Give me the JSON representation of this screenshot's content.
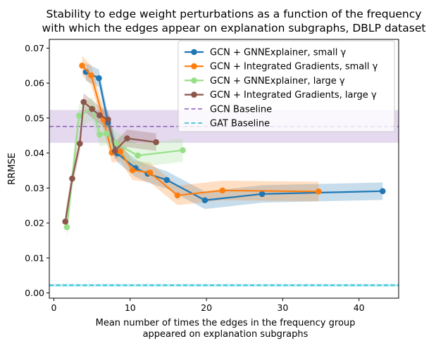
{
  "chart_data": {
    "type": "line",
    "title_lines": [
      "Stability to edge weight perturbations as a function of the frequency",
      "with which the edges appear on explanation subgraphs, DBLP dataset"
    ],
    "xlabel_lines": [
      "Mean number of times the edges in the frequency group",
      "appeared on explanation subgraphs"
    ],
    "ylabel": "RRMSE",
    "xlim": [
      -0.6,
      45.2
    ],
    "ylim": [
      -0.0015,
      0.0725
    ],
    "xticks": [
      0,
      10,
      20,
      30,
      40
    ],
    "xtick_labels": [
      "0",
      "10",
      "20",
      "30",
      "40"
    ],
    "yticks": [
      0.0,
      0.01,
      0.02,
      0.03,
      0.04,
      0.05,
      0.06,
      0.07
    ],
    "ytick_labels": [
      "0.00",
      "0.01",
      "0.02",
      "0.03",
      "0.04",
      "0.05",
      "0.06",
      "0.07"
    ],
    "legend_position": "top-right",
    "series": [
      {
        "name": "GCN + GNNExplainer, small γ",
        "color": "#1f77b4",
        "x": [
          4.2,
          5.9,
          7.1,
          8.3,
          10.7,
          12.3,
          14.8,
          19.8,
          27.3,
          43.1
        ],
        "y": [
          0.0632,
          0.0614,
          0.0487,
          0.0399,
          0.0357,
          0.0341,
          0.0323,
          0.0265,
          0.0283,
          0.0291
        ],
        "band": 0.0025
      },
      {
        "name": "GCN + Integrated Gradients, small γ",
        "color": "#ff7f0e",
        "x": [
          3.7,
          4.9,
          6.5,
          7.6,
          8.7,
          10.3,
          12.6,
          16.2,
          22.1,
          34.7
        ],
        "y": [
          0.065,
          0.0622,
          0.0496,
          0.0401,
          0.0404,
          0.0351,
          0.0344,
          0.0279,
          0.0293,
          0.029
        ],
        "band": 0.0028
      },
      {
        "name": "GCN + GNNExplainer, large γ",
        "color": "#98df8a",
        "x": [
          1.7,
          3.3,
          5.1,
          6.0,
          6.9,
          8.1,
          11.0,
          16.9
        ],
        "y": [
          0.0188,
          0.0507,
          0.0527,
          0.0453,
          0.0456,
          0.0428,
          0.0393,
          0.0408
        ],
        "band": 0.0033
      },
      {
        "name": "GCN + Integrated Gradients, large γ",
        "color": "#8c564b",
        "x": [
          1.5,
          2.4,
          3.4,
          3.9,
          5.0,
          6.0,
          7.1,
          8.0,
          9.6,
          13.4
        ],
        "y": [
          0.0204,
          0.0327,
          0.0427,
          0.0546,
          0.0526,
          0.0508,
          0.0496,
          0.0406,
          0.0442,
          0.0431
        ],
        "band": 0.0025
      }
    ],
    "baselines": [
      {
        "name": "GCN Baseline",
        "color": "#9467bd",
        "y": 0.0476,
        "band": [
          0.0429,
          0.0523
        ]
      },
      {
        "name": "GAT Baseline",
        "color": "#17becf",
        "y": 0.0022,
        "band": [
          0.0018,
          0.0026
        ]
      }
    ]
  }
}
